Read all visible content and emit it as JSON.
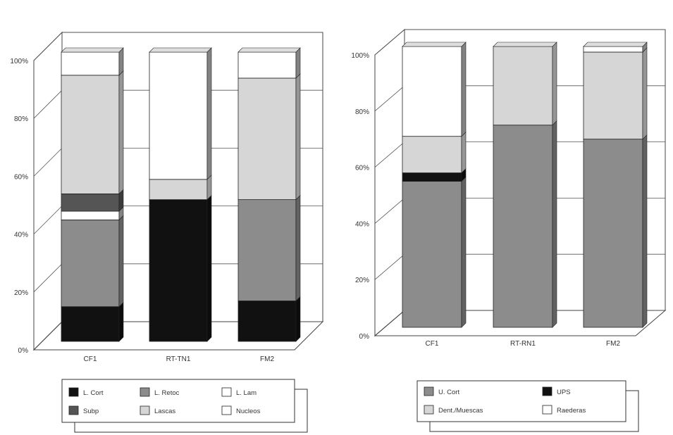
{
  "colors": {
    "L. Cort": "#111111",
    "L. Retoc": "#8c8c8c",
    "L. Lam": "#ffffff",
    "Subp": "#555555",
    "Lascas": "#d6d6d6",
    "Nucleos": "#ffffff",
    "U. Cort": "#8c8c8c",
    "UPS": "#111111",
    "Dent./Muescas": "#d6d6d6",
    "Raederas": "#ffffff"
  },
  "chart_data": [
    {
      "type": "bar",
      "stacked": true,
      "percent": true,
      "categories": [
        "CF1",
        "RT-TN1",
        "FM2"
      ],
      "yticks": [
        "0%",
        "20%",
        "40%",
        "60%",
        "80%",
        "100%"
      ],
      "ylim": [
        0,
        100
      ],
      "grid": true,
      "legend_position": "bottom",
      "series": [
        {
          "name": "L. Cort",
          "values": [
            12,
            49,
            14
          ]
        },
        {
          "name": "L. Retoc",
          "values": [
            30,
            0,
            35
          ]
        },
        {
          "name": "L. Lam",
          "values": [
            3,
            0,
            0
          ]
        },
        {
          "name": "Subp",
          "values": [
            6,
            0,
            0
          ]
        },
        {
          "name": "Lascas",
          "values": [
            41,
            7,
            42
          ]
        },
        {
          "name": "Nucleos",
          "values": [
            8,
            44,
            9
          ]
        }
      ],
      "stack_order": [
        "L. Cort",
        "L. Retoc",
        "L. Lam",
        "Subp",
        "Lascas",
        "Nucleos"
      ],
      "legend": [
        [
          "L. Cort",
          "L. Retoc",
          "L. Lam"
        ],
        [
          "Subp",
          "Lascas",
          "Nucleos"
        ]
      ]
    },
    {
      "type": "bar",
      "stacked": true,
      "percent": true,
      "categories": [
        "CF1",
        "RT-RN1",
        "FM2"
      ],
      "yticks": [
        "0%",
        "20%",
        "40%",
        "60%",
        "80%",
        "100%"
      ],
      "ylim": [
        0,
        100
      ],
      "grid": true,
      "legend_position": "bottom",
      "series": [
        {
          "name": "U. Cort",
          "values": [
            52,
            72,
            67
          ]
        },
        {
          "name": "UPS",
          "values": [
            3,
            0,
            0
          ]
        },
        {
          "name": "Dent./Muescas",
          "values": [
            13,
            28,
            31
          ]
        },
        {
          "name": "Raederas",
          "values": [
            32,
            0,
            2
          ]
        }
      ],
      "stack_order": [
        "U. Cort",
        "UPS",
        "Dent./Muescas",
        "Raederas"
      ],
      "legend": [
        [
          "U. Cort",
          "UPS"
        ],
        [
          "Dent./Muescas",
          "Raederas"
        ]
      ]
    }
  ]
}
